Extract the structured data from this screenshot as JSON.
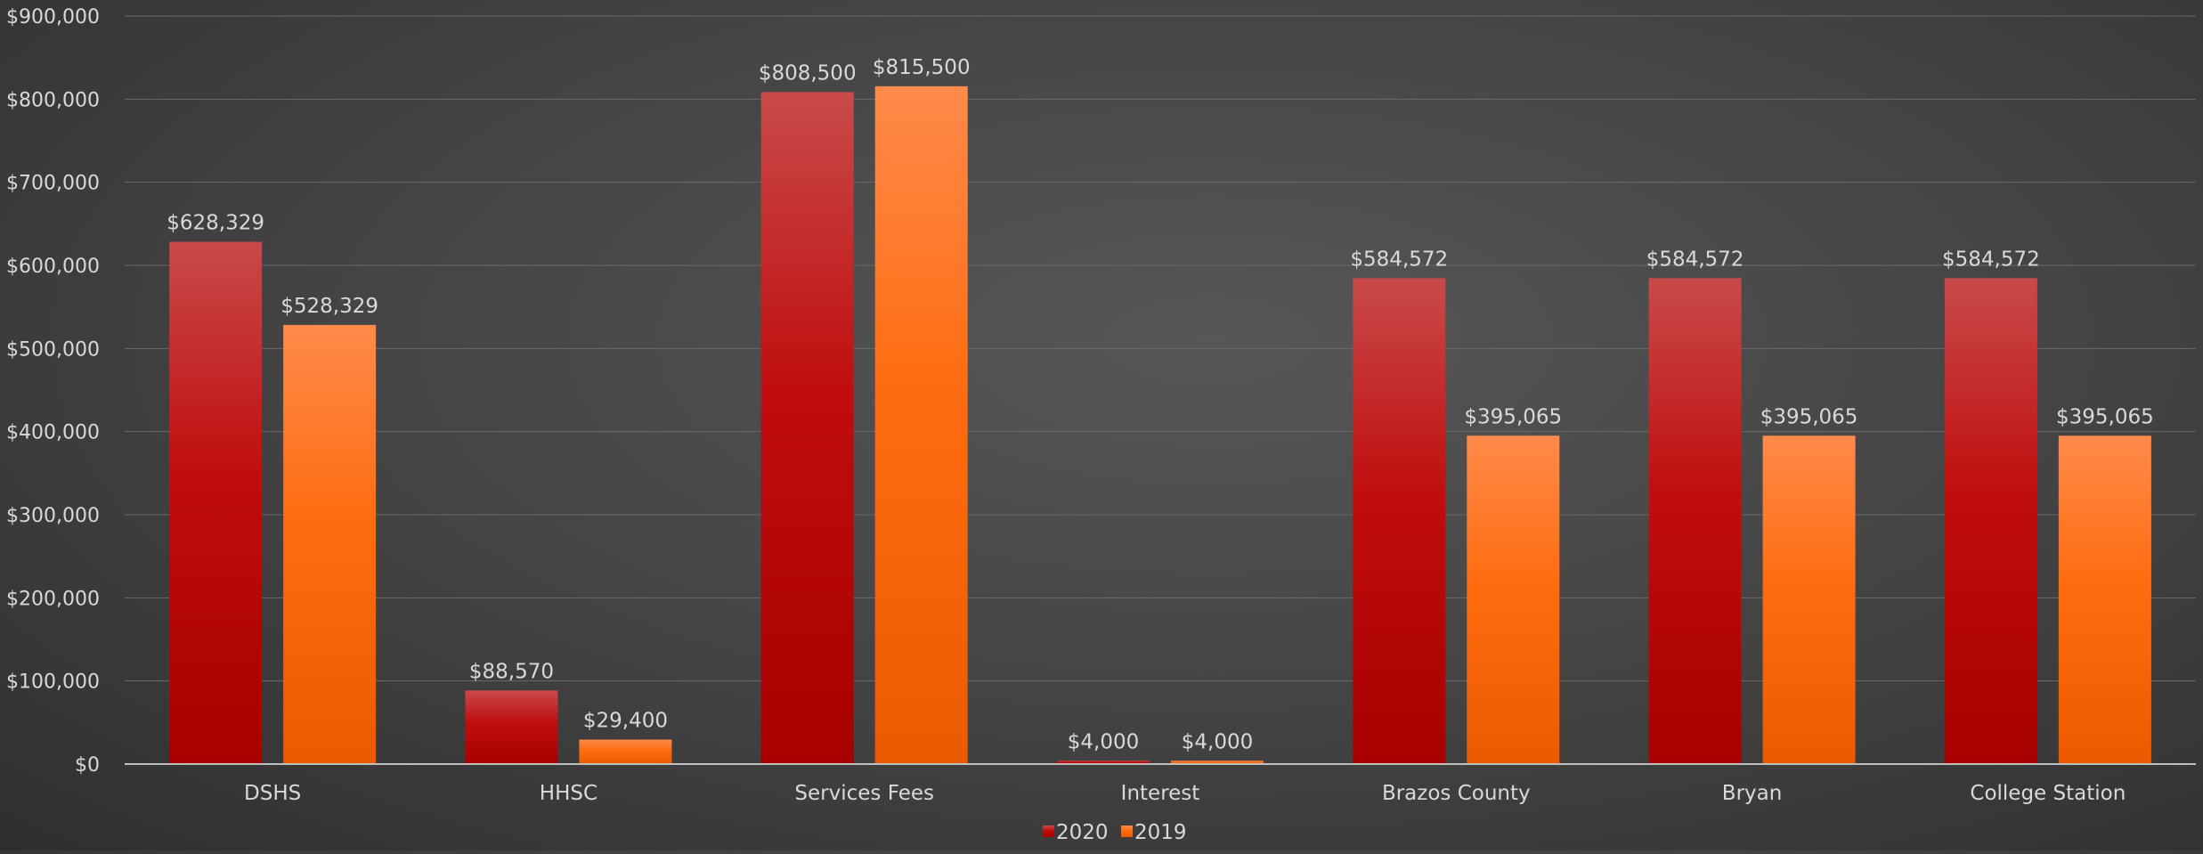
{
  "chart_data": {
    "type": "bar",
    "title": "",
    "xlabel": "",
    "ylabel": "",
    "ylim": [
      0,
      900000
    ],
    "yticks": [
      "$0",
      "$100,000",
      "$200,000",
      "$300,000",
      "$400,000",
      "$500,000",
      "$600,000",
      "$700,000",
      "$800,000",
      "$900,000"
    ],
    "ytick_values": [
      0,
      100000,
      200000,
      300000,
      400000,
      500000,
      600000,
      700000,
      800000,
      900000
    ],
    "grid": true,
    "legend_position": "bottom-center",
    "categories": [
      "DSHS",
      "HHSC",
      "Services Fees",
      "Interest",
      "Brazos County",
      "Bryan",
      "College Station"
    ],
    "series": [
      {
        "name": "2020",
        "color": "#c00000",
        "values": [
          628329,
          88570,
          808500,
          4000,
          584572,
          584572,
          584572
        ],
        "labels": [
          "$628,329",
          "$88,570",
          "$808,500",
          "$4,000",
          "$584,572",
          "$584,572",
          "$584,572"
        ]
      },
      {
        "name": "2019",
        "color": "#ff6a00",
        "values": [
          528329,
          29400,
          815500,
          4000,
          395065,
          395065,
          395065
        ],
        "labels": [
          "$528,329",
          "$29,400",
          "$815,500",
          "$4,000",
          "$395,065",
          "$395,065",
          "$395,065"
        ]
      }
    ]
  }
}
